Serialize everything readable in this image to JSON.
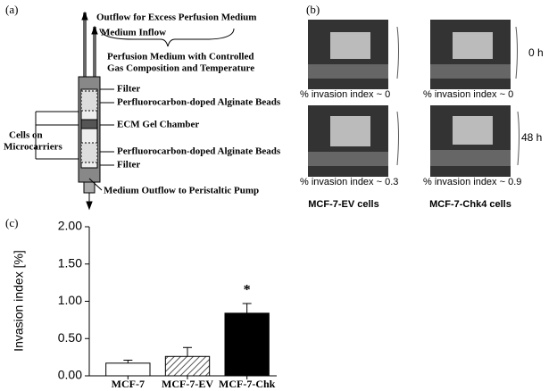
{
  "panel_a": {
    "label": "(a)",
    "texts": [
      "Outflow for Excess Perfusion Medium",
      "Medium Inflow",
      "Perfusion Medium with Controlled",
      "Gas Composition and Temperature",
      "Filter",
      "Perfluorocarbon-doped Alginate Beads",
      "Cells on",
      "Microcarriers",
      "ECM Gel Chamber",
      "Perfluorocarbon-doped Alginate Beads",
      "Filter",
      "Medium Outflow to Peristaltic Pump"
    ]
  },
  "panel_b": {
    "label": "(b)",
    "times": [
      "0 h",
      "48 h"
    ],
    "captions": [
      "% invasion index  ~ 0",
      "% invasion index  ~ 0",
      "% invasion index  ~ 0.3",
      "% invasion index  ~ 0.9"
    ],
    "cells": [
      "MCF-7-EV cells",
      "MCF-7-Chk4 cells"
    ]
  },
  "chart_data": {
    "type": "bar",
    "panel_label": "(c)",
    "ylabel": "Invasion index [%]",
    "categories": [
      "MCF-7",
      "MCF-7-EV",
      "MCF-7-Chk"
    ],
    "values": [
      0.17,
      0.26,
      0.84
    ],
    "errors": [
      0.04,
      0.12,
      0.13
    ],
    "colors": [
      "#ffffff",
      "#ffffff",
      "#000000"
    ],
    "hatch": [
      false,
      true,
      false
    ],
    "annotations": [
      {
        "text": "*",
        "category": 2
      }
    ],
    "ylim": [
      0,
      2
    ],
    "yticks": [
      {
        "value": 0,
        "label": "0.00"
      },
      {
        "value": 0.5,
        "label": "0.50"
      },
      {
        "value": 1,
        "label": "1.00"
      },
      {
        "value": 1.5,
        "label": "1.50"
      },
      {
        "value": 2,
        "label": "2.00"
      }
    ]
  }
}
